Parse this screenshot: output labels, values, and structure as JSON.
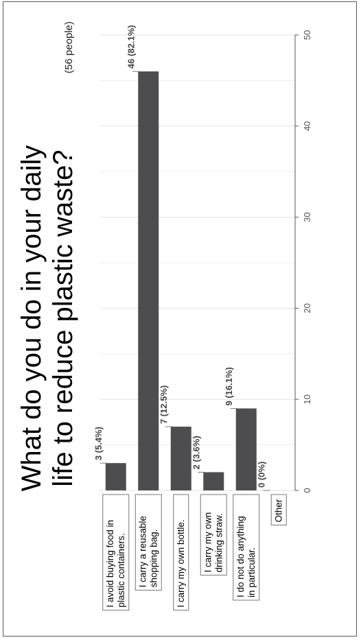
{
  "chart_data": {
    "type": "bar",
    "orientation": "horizontal",
    "title_lines": [
      "What do you do in your daily",
      "life to reduce plastic waste?"
    ],
    "subtitle": "(56 people)",
    "categories": [
      [
        "I avoid buying food in",
        "plastic containers."
      ],
      [
        "I carry a reusable",
        "shopping bag."
      ],
      [
        "I carry my own bottle."
      ],
      [
        "I carry my own",
        "drinking straw."
      ],
      [
        "I do not do anything",
        "in particular."
      ],
      [
        "Other"
      ]
    ],
    "values": [
      3,
      46,
      7,
      2,
      9,
      0
    ],
    "data_labels": [
      "3 (5.4%)",
      "46 (82.1%)",
      "7 (12.5%)",
      "2 (3.6%)",
      "9 (16.1%)",
      "0 (0%)"
    ],
    "xlim": [
      0,
      50
    ],
    "ticks": [
      0,
      10,
      20,
      30,
      40,
      50
    ],
    "grid": true,
    "colors": {
      "bar": "#4d4d4f",
      "grid": "#e3e3e3",
      "axis": "#555555"
    }
  }
}
